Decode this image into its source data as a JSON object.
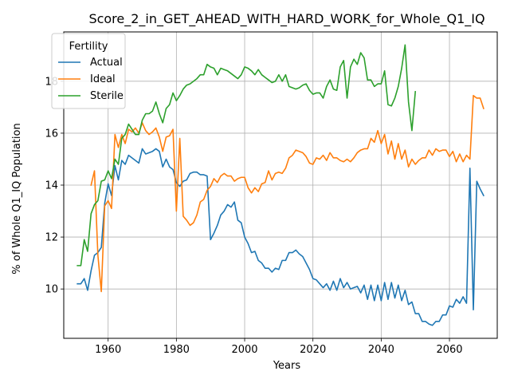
{
  "chart_data": {
    "type": "line",
    "title": "Score_2_in_GET_AHEAD_WITH_HARD_WORK_for_Whole_Q1_IQ",
    "xlabel": "Years",
    "ylabel": "% of Whole Q1_IQ Population",
    "xlim": [
      1947,
      2074
    ],
    "ylim": [
      8.1,
      19.9
    ],
    "xticks": [
      1960,
      1980,
      2000,
      2020,
      2040,
      2060
    ],
    "yticks": [
      10,
      12,
      14,
      16,
      18
    ],
    "grid": true,
    "legend": {
      "title": "Fertility",
      "placement": "top-left"
    },
    "series": [
      {
        "name": "Actual",
        "color": "#1f77b4",
        "x": [
          1951,
          1952,
          1953,
          1954,
          1955,
          1956,
          1957,
          1958,
          1959,
          1960,
          1961,
          1962,
          1963,
          1964,
          1965,
          1966,
          1967,
          1968,
          1969,
          1970,
          1971,
          1972,
          1973,
          1974,
          1975,
          1976,
          1977,
          1978,
          1979,
          1980,
          1981,
          1982,
          1983,
          1984,
          1985,
          1986,
          1987,
          1988,
          1989,
          1990,
          1991,
          1992,
          1993,
          1994,
          1995,
          1996,
          1997,
          1998,
          1999,
          2000,
          2001,
          2002,
          2003,
          2004,
          2005,
          2006,
          2007,
          2008,
          2009,
          2010,
          2011,
          2012,
          2013,
          2014,
          2015,
          2016,
          2017,
          2018,
          2019,
          2020,
          2021,
          2022,
          2023,
          2024,
          2025,
          2026,
          2027,
          2028,
          2029,
          2030,
          2031,
          2032,
          2033,
          2034,
          2035,
          2036,
          2037,
          2038,
          2039,
          2040,
          2041,
          2042,
          2043,
          2044,
          2045,
          2046,
          2047,
          2048,
          2049,
          2050,
          2051,
          2052,
          2053,
          2054,
          2055,
          2056,
          2057,
          2058,
          2059,
          2060,
          2061,
          2062,
          2063,
          2064,
          2065,
          2066,
          2067,
          2068,
          2069,
          2070
        ],
        "values": [
          10.2,
          10.2,
          10.4,
          9.95,
          10.7,
          11.3,
          11.4,
          11.6,
          13.3,
          14.05,
          13.6,
          14.75,
          14.2,
          14.95,
          14.8,
          15.15,
          15.05,
          14.95,
          14.85,
          15.4,
          15.2,
          15.25,
          15.3,
          15.4,
          15.3,
          14.7,
          15.0,
          14.7,
          14.6,
          14.1,
          13.95,
          14.15,
          14.2,
          14.45,
          14.5,
          14.5,
          14.4,
          14.4,
          14.35,
          11.9,
          12.15,
          12.45,
          12.85,
          13.0,
          13.25,
          13.15,
          13.35,
          12.65,
          12.55,
          12.0,
          11.75,
          11.4,
          11.45,
          11.1,
          11.0,
          10.8,
          10.8,
          10.65,
          10.8,
          10.75,
          11.1,
          11.1,
          11.4,
          11.4,
          11.5,
          11.35,
          11.25,
          11.0,
          10.75,
          10.4,
          10.35,
          10.2,
          10.05,
          10.2,
          9.95,
          10.3,
          9.95,
          10.4,
          10.05,
          10.25,
          10.0,
          10.05,
          10.1,
          9.85,
          10.15,
          9.6,
          10.15,
          9.55,
          10.15,
          9.55,
          10.25,
          9.6,
          10.25,
          9.65,
          10.15,
          9.55,
          9.95,
          9.4,
          9.5,
          9.05,
          9.05,
          8.75,
          8.75,
          8.65,
          8.6,
          8.75,
          8.75,
          9.0,
          9.0,
          9.35,
          9.3,
          9.6,
          9.45,
          9.7,
          9.45,
          14.65,
          9.2,
          14.15,
          13.85,
          13.6
        ]
      },
      {
        "name": "Ideal",
        "color": "#ff7f0e",
        "x": [
          1955,
          1956,
          1957,
          1958,
          1959,
          1960,
          1961,
          1962,
          1963,
          1964,
          1965,
          1966,
          1967,
          1968,
          1969,
          1970,
          1971,
          1972,
          1973,
          1974,
          1975,
          1976,
          1977,
          1978,
          1979,
          1980,
          1981,
          1982,
          1983,
          1984,
          1985,
          1986,
          1987,
          1988,
          1989,
          1990,
          1991,
          1992,
          1993,
          1994,
          1995,
          1996,
          1997,
          1998,
          1999,
          2000,
          2001,
          2002,
          2003,
          2004,
          2005,
          2006,
          2007,
          2008,
          2009,
          2010,
          2011,
          2012,
          2013,
          2014,
          2015,
          2016,
          2017,
          2018,
          2019,
          2020,
          2021,
          2022,
          2023,
          2024,
          2025,
          2026,
          2027,
          2028,
          2029,
          2030,
          2031,
          2032,
          2033,
          2034,
          2035,
          2036,
          2037,
          2038,
          2039,
          2040,
          2041,
          2042,
          2043,
          2044,
          2045,
          2046,
          2047,
          2048,
          2049,
          2050,
          2051,
          2052,
          2053,
          2054,
          2055,
          2056,
          2057,
          2058,
          2059,
          2060,
          2061,
          2062,
          2063,
          2064,
          2065,
          2066,
          2067,
          2068,
          2069,
          2070
        ],
        "values": [
          14.0,
          14.55,
          11.3,
          9.9,
          13.2,
          13.4,
          13.1,
          15.95,
          15.45,
          15.95,
          15.6,
          16.15,
          16.05,
          16.2,
          16.0,
          16.4,
          16.1,
          15.95,
          16.05,
          16.2,
          15.85,
          15.3,
          15.85,
          15.9,
          16.15,
          13.0,
          15.8,
          12.8,
          12.65,
          12.45,
          12.55,
          12.85,
          13.35,
          13.45,
          13.8,
          13.95,
          14.25,
          14.1,
          14.35,
          14.45,
          14.35,
          14.35,
          14.15,
          14.25,
          14.3,
          14.3,
          13.9,
          13.7,
          13.9,
          13.75,
          14.05,
          14.1,
          14.55,
          14.2,
          14.45,
          14.5,
          14.45,
          14.65,
          15.05,
          15.15,
          15.35,
          15.3,
          15.25,
          15.1,
          14.85,
          14.8,
          15.05,
          15.0,
          15.15,
          14.95,
          15.25,
          15.05,
          15.05,
          14.95,
          14.9,
          15.0,
          14.9,
          15.05,
          15.25,
          15.35,
          15.4,
          15.4,
          15.8,
          15.65,
          16.1,
          15.6,
          15.95,
          15.2,
          15.7,
          15.0,
          15.6,
          15.0,
          15.35,
          14.7,
          15.0,
          14.8,
          14.95,
          15.05,
          15.05,
          15.35,
          15.15,
          15.4,
          15.3,
          15.35,
          15.35,
          15.1,
          15.3,
          14.9,
          15.2,
          14.9,
          15.15,
          15.0,
          17.45,
          17.35,
          17.35,
          16.95
        ]
      },
      {
        "name": "Sterile",
        "color": "#2ca02c",
        "x": [
          1951,
          1952,
          1953,
          1954,
          1955,
          1956,
          1957,
          1958,
          1959,
          1960,
          1961,
          1962,
          1963,
          1964,
          1965,
          1966,
          1967,
          1968,
          1969,
          1970,
          1971,
          1972,
          1973,
          1974,
          1975,
          1976,
          1977,
          1978,
          1979,
          1980,
          1981,
          1982,
          1983,
          1984,
          1985,
          1986,
          1987,
          1988,
          1989,
          1990,
          1991,
          1992,
          1993,
          1994,
          1995,
          1996,
          1997,
          1998,
          1999,
          2000,
          2001,
          2002,
          2003,
          2004,
          2005,
          2006,
          2007,
          2008,
          2009,
          2010,
          2011,
          2012,
          2013,
          2014,
          2015,
          2016,
          2017,
          2018,
          2019,
          2020,
          2021,
          2022,
          2023,
          2024,
          2025,
          2026,
          2027,
          2028,
          2029,
          2030,
          2031,
          2032,
          2033,
          2034,
          2035,
          2036,
          2037,
          2038,
          2039,
          2040,
          2041,
          2042,
          2043,
          2044,
          2045,
          2046,
          2047,
          2048,
          2049,
          2050
        ],
        "values": [
          10.9,
          10.9,
          11.9,
          11.45,
          12.9,
          13.25,
          13.4,
          14.15,
          14.2,
          14.55,
          14.25,
          15.0,
          14.8,
          15.8,
          15.95,
          16.35,
          16.15,
          15.95,
          15.95,
          16.5,
          16.75,
          16.75,
          16.85,
          17.2,
          16.75,
          16.4,
          16.95,
          17.1,
          17.55,
          17.25,
          17.45,
          17.7,
          17.85,
          17.9,
          18.0,
          18.1,
          18.25,
          18.25,
          18.65,
          18.55,
          18.5,
          18.25,
          18.5,
          18.45,
          18.4,
          18.3,
          18.2,
          18.1,
          18.25,
          18.55,
          18.5,
          18.4,
          18.25,
          18.45,
          18.25,
          18.15,
          18.05,
          17.95,
          18.0,
          18.25,
          18.0,
          18.25,
          17.8,
          17.75,
          17.7,
          17.75,
          17.85,
          17.9,
          17.65,
          17.5,
          17.55,
          17.55,
          17.35,
          17.8,
          18.05,
          17.7,
          17.65,
          18.55,
          18.8,
          17.35,
          18.55,
          18.85,
          18.65,
          19.1,
          18.9,
          18.05,
          18.05,
          17.8,
          17.9,
          17.9,
          18.4,
          17.1,
          17.05,
          17.35,
          17.8,
          18.5,
          19.4,
          17.2,
          16.1,
          17.6
        ]
      }
    ]
  }
}
